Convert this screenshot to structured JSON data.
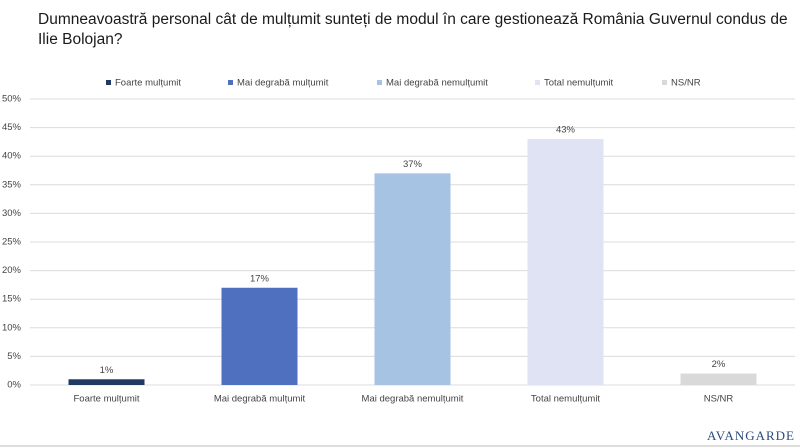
{
  "chart_data": {
    "type": "bar",
    "title": "Dumneavoastră personal cât de mulțumit sunteți de modul în care gestionează România Guvernul condus de Ilie Bolojan?",
    "categories": [
      "Foarte mulțumit",
      "Mai degrabă mulțumit",
      "Mai degrabă nemulțumit",
      "Total nemulțumit",
      "NS/NR"
    ],
    "values": [
      1,
      17,
      37,
      43,
      2
    ],
    "value_labels": [
      "1%",
      "17%",
      "37%",
      "43%",
      "2%"
    ],
    "colors": [
      "#1f3864",
      "#4e70bf",
      "#a6c3e3",
      "#dfe3f4",
      "#d9d9d9"
    ],
    "ylim": [
      0,
      50
    ],
    "yticks": [
      {
        "value": 0,
        "label": "0%"
      },
      {
        "value": 5,
        "label": "5%"
      },
      {
        "value": 10,
        "label": "10%"
      },
      {
        "value": 15,
        "label": "15%"
      },
      {
        "value": 20,
        "label": "20%"
      },
      {
        "value": 25,
        "label": "25%"
      },
      {
        "value": 30,
        "label": "30%"
      },
      {
        "value": 35,
        "label": "35%"
      },
      {
        "value": 40,
        "label": "40%"
      },
      {
        "value": 45,
        "label": "45%"
      },
      {
        "value": 50,
        "label": "50%"
      }
    ],
    "grid": true,
    "legend": "top",
    "logo": "AVANGARDE"
  }
}
